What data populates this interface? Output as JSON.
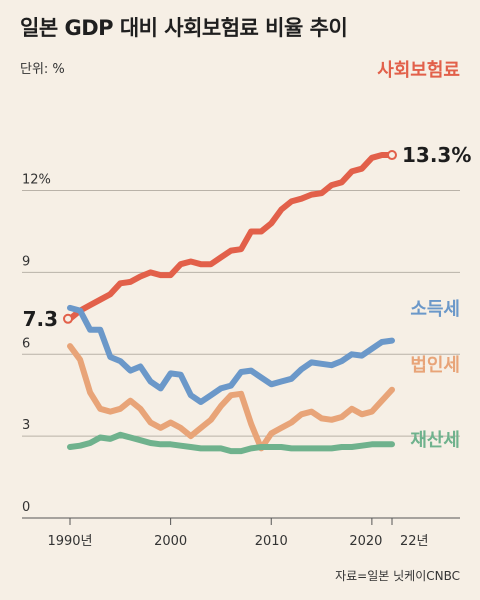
{
  "chart_data": {
    "type": "line",
    "title": "일본 GDP 대비 사회보험료 비율 추이",
    "unit_label": "단위: %",
    "source": "자료=일본 닛케이CNBC",
    "x": [
      1990,
      1991,
      1992,
      1993,
      1994,
      1995,
      1996,
      1997,
      1998,
      1999,
      2000,
      2001,
      2002,
      2003,
      2004,
      2005,
      2006,
      2007,
      2008,
      2009,
      2010,
      2011,
      2012,
      2013,
      2014,
      2015,
      2016,
      2017,
      2018,
      2019,
      2020,
      2021,
      2022
    ],
    "xlim": [
      1989,
      2025
    ],
    "ylim": [
      0,
      15.5
    ],
    "y_ticks": [
      {
        "value": 0,
        "label": "0"
      },
      {
        "value": 3,
        "label": "3"
      },
      {
        "value": 6,
        "label": "6"
      },
      {
        "value": 9,
        "label": "9"
      },
      {
        "value": 12,
        "label": "12%"
      }
    ],
    "x_ticks": [
      {
        "value": 1990,
        "label": "1990년"
      },
      {
        "value": 2000,
        "label": "2000"
      },
      {
        "value": 2010,
        "label": "2010"
      },
      {
        "value": 2020,
        "label": "2020"
      },
      {
        "value": 2022,
        "label": "22년"
      }
    ],
    "series": [
      {
        "name": "사회보험료",
        "color": "#e2604a",
        "values": [
          7.3,
          7.6,
          7.8,
          8.0,
          8.2,
          8.6,
          8.65,
          8.85,
          9.0,
          8.9,
          8.9,
          9.3,
          9.4,
          9.3,
          9.3,
          9.55,
          9.8,
          9.85,
          10.5,
          10.5,
          10.8,
          11.3,
          11.6,
          11.7,
          11.85,
          11.9,
          12.2,
          12.3,
          12.7,
          12.8,
          13.2,
          13.3,
          13.3
        ],
        "end_label": "13.3%",
        "start_label": "7.3"
      },
      {
        "name": "소득세",
        "color": "#6b98c9",
        "values": [
          7.7,
          7.6,
          6.9,
          6.9,
          5.9,
          5.75,
          5.4,
          5.55,
          5.0,
          4.75,
          5.3,
          5.25,
          4.5,
          4.25,
          4.5,
          4.75,
          4.85,
          5.35,
          5.4,
          5.15,
          4.9,
          5.0,
          5.1,
          5.45,
          5.7,
          5.65,
          5.6,
          5.75,
          6.0,
          5.95,
          6.2,
          6.45,
          6.5
        ]
      },
      {
        "name": "법인세",
        "color": "#e8a478",
        "values": [
          6.3,
          5.8,
          4.6,
          4.0,
          3.9,
          4.0,
          4.3,
          4.0,
          3.5,
          3.3,
          3.5,
          3.3,
          3.0,
          3.3,
          3.6,
          4.1,
          4.5,
          4.55,
          3.45,
          2.55,
          3.1,
          3.3,
          3.5,
          3.8,
          3.9,
          3.65,
          3.6,
          3.7,
          4.0,
          3.8,
          3.9,
          4.3,
          4.7
        ]
      },
      {
        "name": "재산세",
        "color": "#6fb28d",
        "values": [
          2.6,
          2.65,
          2.75,
          2.95,
          2.9,
          3.05,
          2.95,
          2.85,
          2.75,
          2.7,
          2.7,
          2.65,
          2.6,
          2.55,
          2.55,
          2.55,
          2.45,
          2.45,
          2.55,
          2.6,
          2.6,
          2.6,
          2.55,
          2.55,
          2.55,
          2.55,
          2.55,
          2.6,
          2.6,
          2.65,
          2.7,
          2.7,
          2.7
        ]
      }
    ],
    "grid": true
  }
}
